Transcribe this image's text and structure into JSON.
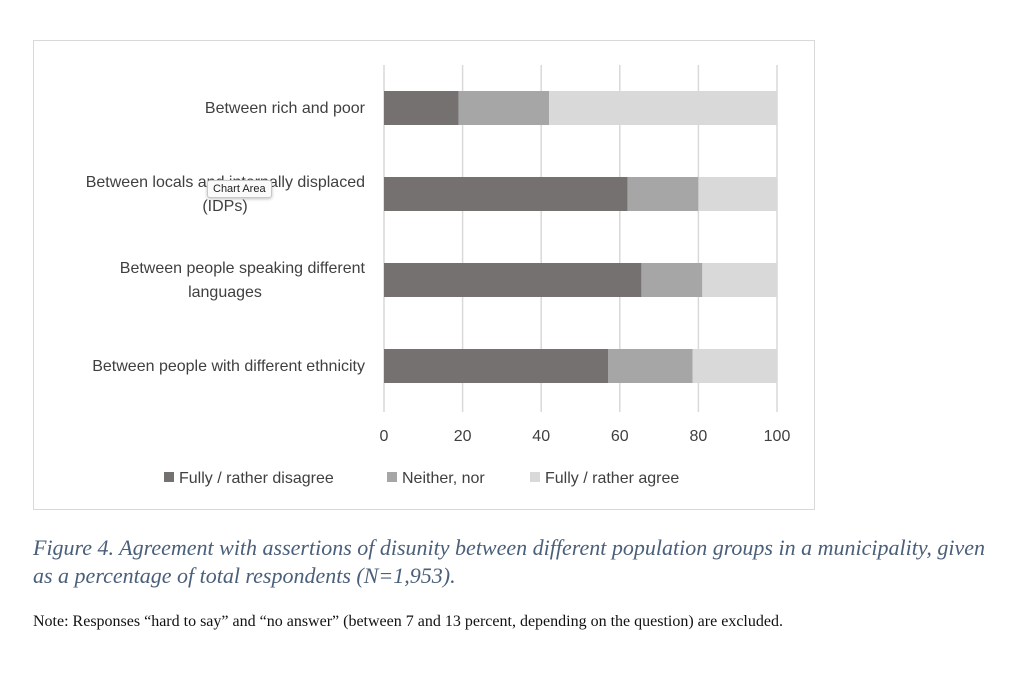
{
  "chart_data": {
    "type": "bar",
    "orientation": "horizontal",
    "stacked": true,
    "categories": [
      "Between rich and poor",
      "Between locals and internally displaced (IDPs)",
      "Between people speaking different languages",
      "Between people with different ethnicity"
    ],
    "category_lines": [
      [
        "Between rich and poor"
      ],
      [
        "Between locals and internally displaced",
        "(IDPs)"
      ],
      [
        "Between people speaking different",
        "languages"
      ],
      [
        "Between people with different ethnicity"
      ]
    ],
    "series": [
      {
        "name": "Fully / rather disagree",
        "color": "#767171",
        "values": [
          19,
          62,
          65.5,
          57
        ]
      },
      {
        "name": "Neither, nor",
        "color": "#a6a6a6",
        "values": [
          23,
          18,
          15.5,
          21.5
        ]
      },
      {
        "name": "Fully / rather agree",
        "color": "#d9d9d9",
        "values": [
          58,
          20,
          19,
          21.5
        ]
      }
    ],
    "xlim": [
      0,
      100
    ],
    "xticks": [
      "0",
      "20",
      "40",
      "60",
      "80",
      "100"
    ],
    "grid": true,
    "legend_position": "bottom"
  },
  "tooltip": "Chart Area",
  "caption": "Figure 4. Agreement with assertions of disunity between different population groups in a municipality, given as a percentage of total respondents (N=1,953).",
  "note": "Note: Responses “hard to say” and “no answer” (between 7 and 13 percent, depending on the question) are excluded."
}
